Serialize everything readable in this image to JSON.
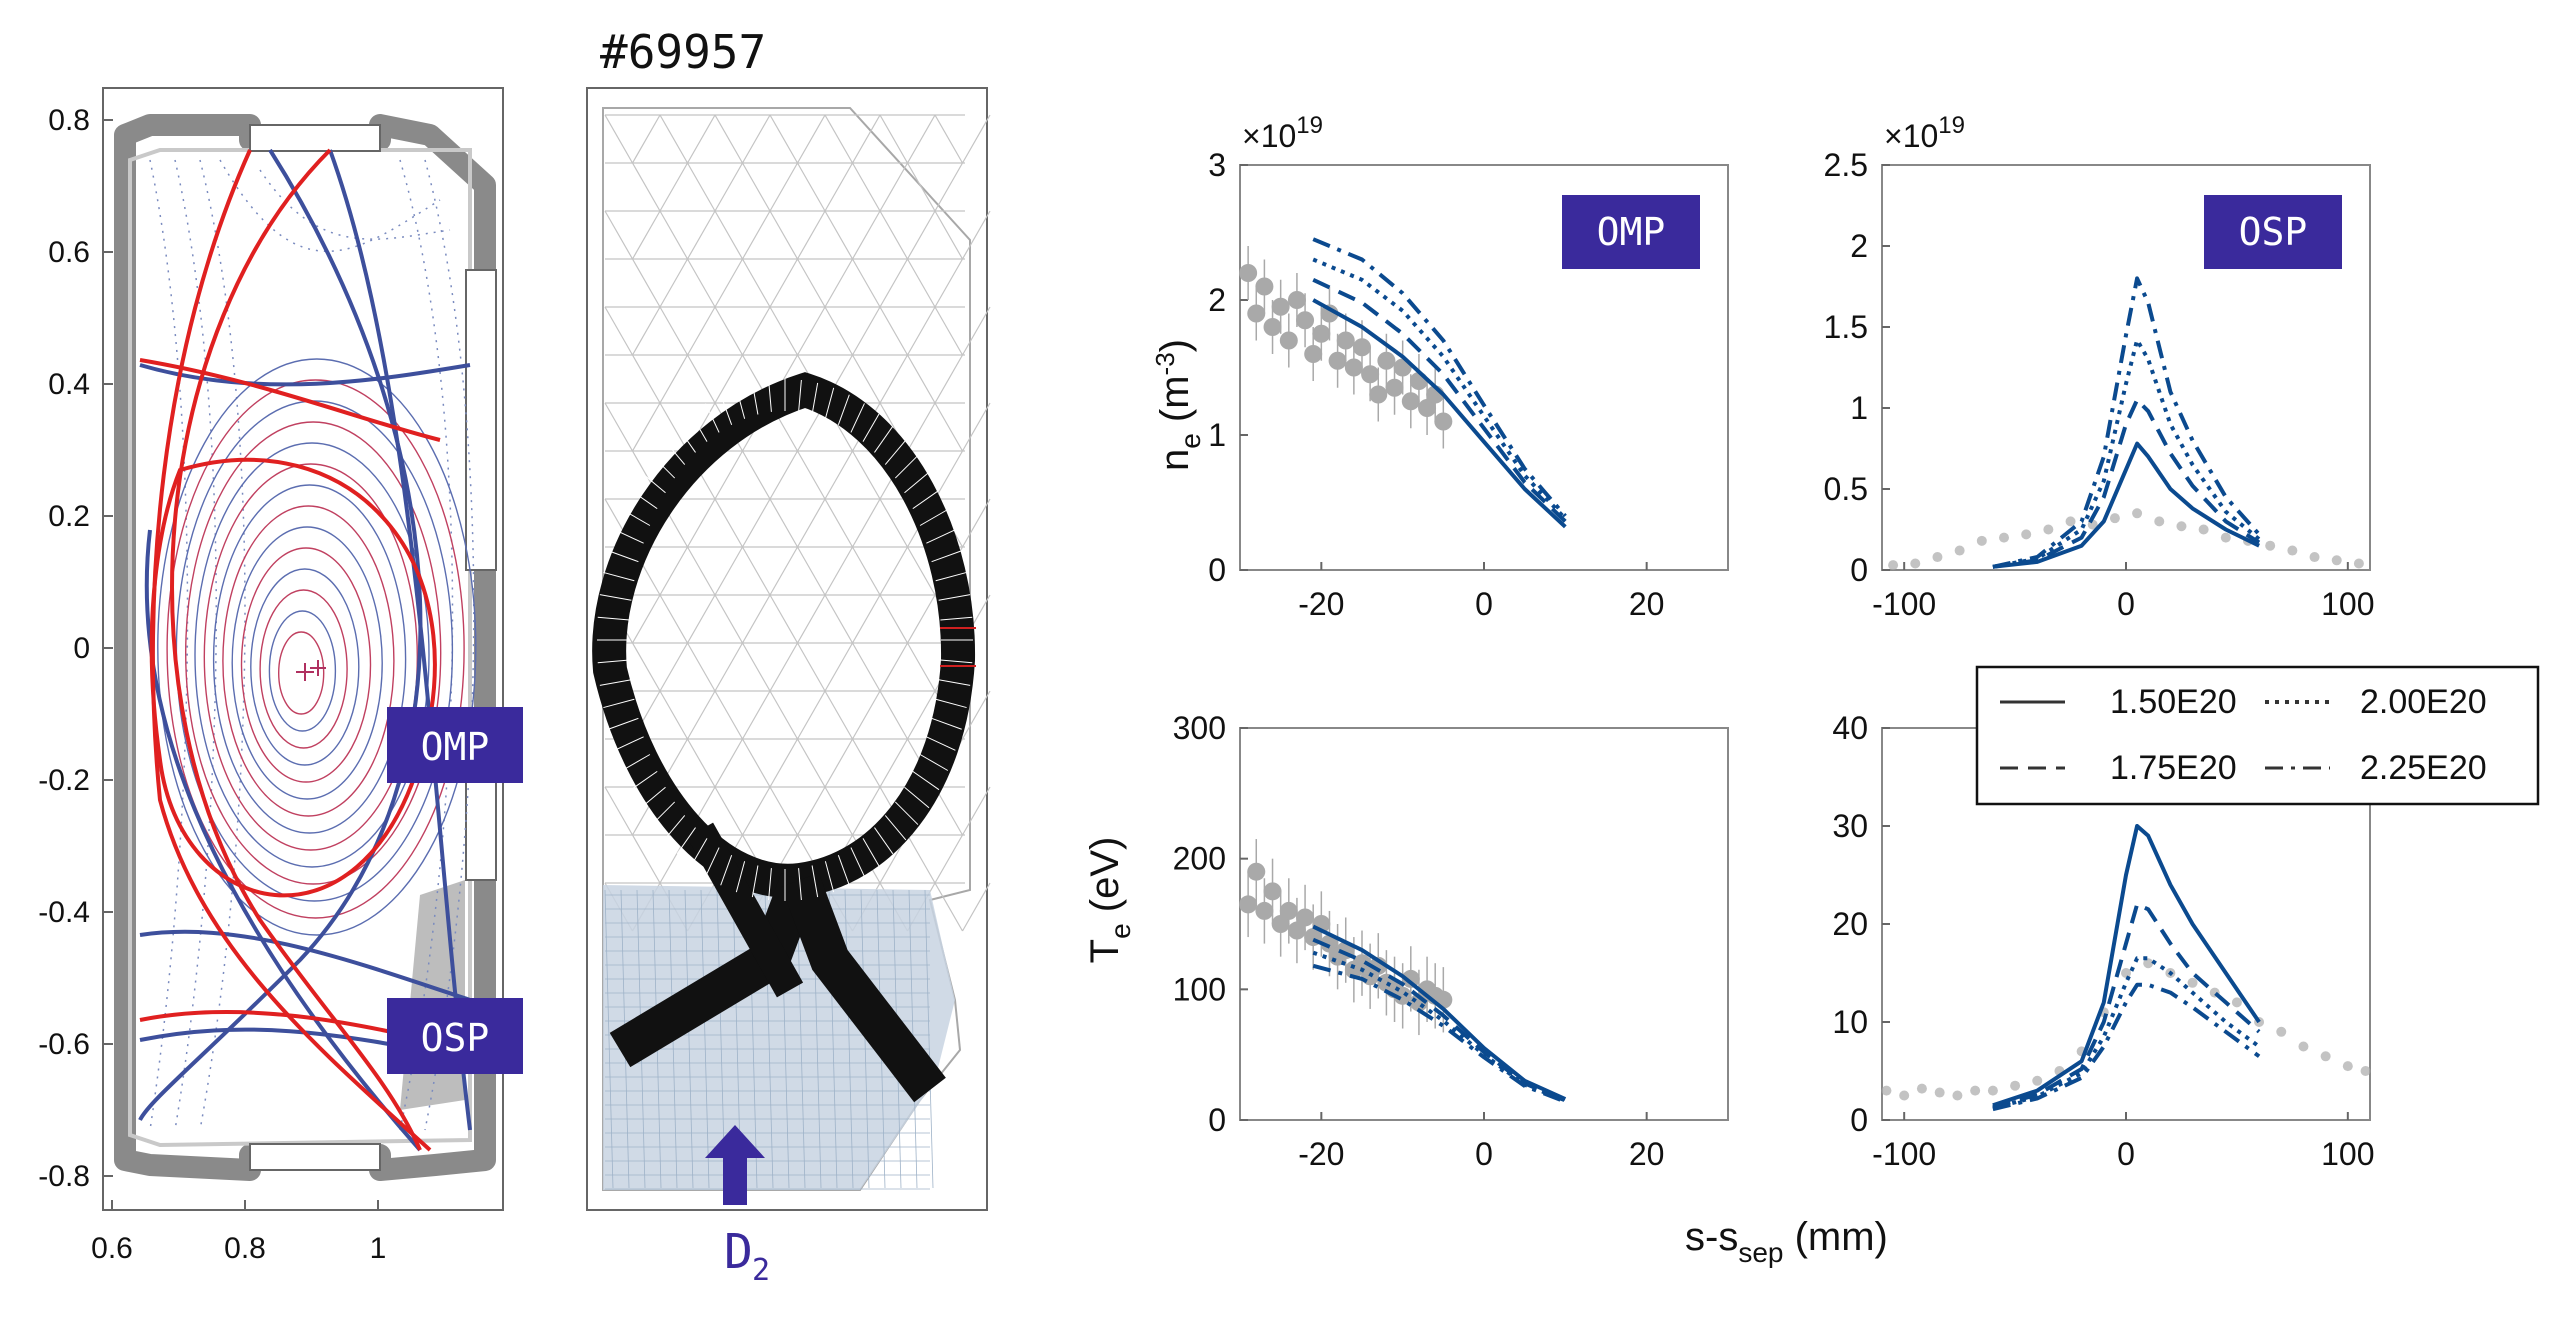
{
  "figure": {
    "shot_label": "#69957",
    "gas_label_main": "D",
    "gas_label_sub": "2",
    "tag_omp": "OMP",
    "tag_osp": "OSP",
    "xlabel_main": "s-s",
    "xlabel_sub": "sep",
    "xlabel_unit": " (mm)",
    "colors": {
      "model": "#0b4a8f",
      "exp": "#a9a9a9",
      "tag_bg": "#3a2a9c",
      "red": "#e02020",
      "blue": "#3d4f9c"
    },
    "icons": {
      "gas_arrow": "arrow-up-icon"
    }
  },
  "equilibrium_panel": {
    "xticks": [
      "0.6",
      "0.8",
      "1"
    ],
    "yticks": [
      "0.8",
      "0.6",
      "0.4",
      "0.2",
      "0",
      "-0.2",
      "-0.4",
      "-0.6",
      "-0.8"
    ]
  },
  "chart_data": [
    {
      "id": "ne_omp",
      "type": "line",
      "tag": "OMP",
      "ylabel_main": "n",
      "ylabel_sub": "e",
      "ylabel_unit_pre": " (m",
      "ylabel_unit_sup": "-3",
      "ylabel_unit_post": ")",
      "exponent_base": "×10",
      "exponent_power": "19",
      "xlim": [
        -30,
        30
      ],
      "ylim": [
        0,
        3
      ],
      "xticks": [
        "-20",
        "0",
        "20"
      ],
      "xtick_values": [
        -20,
        0,
        20
      ],
      "yticks": [
        "0",
        "1",
        "2",
        "3"
      ],
      "ytick_values": [
        0,
        1,
        2,
        3
      ],
      "series": [
        {
          "name": "1.50E20",
          "dash": "",
          "x": [
            -21,
            -15,
            -10,
            -5,
            0,
            5,
            10
          ],
          "y": [
            2.0,
            1.8,
            1.58,
            1.3,
            0.95,
            0.6,
            0.32
          ]
        },
        {
          "name": "1.75E20",
          "dash": "18 10",
          "x": [
            -21,
            -15,
            -10,
            -5,
            0,
            5,
            10
          ],
          "y": [
            2.15,
            1.98,
            1.75,
            1.45,
            1.05,
            0.65,
            0.36
          ]
        },
        {
          "name": "2.00E20",
          "dash": "4 6",
          "x": [
            -21,
            -15,
            -10,
            -5,
            0,
            5,
            10
          ],
          "y": [
            2.3,
            2.15,
            1.92,
            1.58,
            1.14,
            0.7,
            0.38
          ]
        },
        {
          "name": "2.25E20",
          "dash": "18 8 4 8",
          "x": [
            -21,
            -15,
            -10,
            -5,
            0,
            5,
            10
          ],
          "y": [
            2.45,
            2.3,
            2.05,
            1.7,
            1.22,
            0.75,
            0.4
          ]
        }
      ],
      "experiment": {
        "x": [
          -29,
          -28,
          -27,
          -26,
          -25,
          -24,
          -23,
          -22,
          -21,
          -20,
          -19,
          -18,
          -17,
          -16,
          -15,
          -14,
          -13,
          -12,
          -11,
          -10,
          -9,
          -8,
          -7,
          -6,
          -5
        ],
        "y": [
          2.2,
          1.9,
          2.1,
          1.8,
          1.95,
          1.7,
          2.0,
          1.85,
          1.6,
          1.75,
          1.9,
          1.55,
          1.7,
          1.5,
          1.65,
          1.45,
          1.3,
          1.55,
          1.35,
          1.5,
          1.25,
          1.4,
          1.2,
          1.3,
          1.1
        ],
        "err": 0.2
      }
    },
    {
      "id": "ne_osp",
      "type": "line",
      "tag": "OSP",
      "exponent_base": "×10",
      "exponent_power": "19",
      "xlim": [
        -110,
        110
      ],
      "ylim": [
        0,
        2.5
      ],
      "xticks": [
        "-100",
        "0",
        "100"
      ],
      "xtick_values": [
        -100,
        0,
        100
      ],
      "yticks": [
        "0",
        "0.5",
        "1",
        "1.5",
        "2",
        "2.5"
      ],
      "ytick_values": [
        0,
        0.5,
        1,
        1.5,
        2,
        2.5
      ],
      "series": [
        {
          "name": "1.50E20",
          "dash": "",
          "x": [
            -60,
            -40,
            -20,
            -10,
            0,
            5,
            10,
            20,
            30,
            45,
            60
          ],
          "y": [
            0.02,
            0.05,
            0.15,
            0.3,
            0.62,
            0.78,
            0.7,
            0.5,
            0.38,
            0.25,
            0.15
          ]
        },
        {
          "name": "1.75E20",
          "dash": "18 10",
          "x": [
            -60,
            -40,
            -20,
            -10,
            0,
            5,
            10,
            20,
            30,
            45,
            60
          ],
          "y": [
            0.02,
            0.06,
            0.2,
            0.45,
            0.9,
            1.05,
            0.98,
            0.72,
            0.52,
            0.3,
            0.17
          ]
        },
        {
          "name": "2.00E20",
          "dash": "4 6",
          "x": [
            -60,
            -40,
            -20,
            -10,
            0,
            5,
            10,
            20,
            30,
            45,
            60
          ],
          "y": [
            0.02,
            0.07,
            0.25,
            0.55,
            1.15,
            1.42,
            1.3,
            0.9,
            0.65,
            0.36,
            0.19
          ]
        },
        {
          "name": "2.25E20",
          "dash": "18 8 4 8",
          "x": [
            -60,
            -40,
            -20,
            -10,
            0,
            5,
            10,
            20,
            30,
            45,
            60
          ],
          "y": [
            0.02,
            0.08,
            0.3,
            0.7,
            1.45,
            1.8,
            1.65,
            1.1,
            0.8,
            0.45,
            0.22
          ]
        }
      ],
      "experiment": {
        "x": [
          -105,
          -95,
          -85,
          -75,
          -65,
          -55,
          -45,
          -35,
          -25,
          -15,
          -5,
          5,
          15,
          25,
          35,
          45,
          55,
          65,
          75,
          85,
          95,
          105
        ],
        "y": [
          0.03,
          0.04,
          0.08,
          0.12,
          0.18,
          0.2,
          0.22,
          0.25,
          0.3,
          0.28,
          0.32,
          0.35,
          0.3,
          0.27,
          0.25,
          0.2,
          0.18,
          0.15,
          0.12,
          0.08,
          0.06,
          0.04
        ],
        "err": 0
      }
    },
    {
      "id": "te_omp",
      "type": "line",
      "ylabel_main": "T",
      "ylabel_sub": "e",
      "ylabel_unit_pre": " (eV)",
      "ylabel_unit_sup": "",
      "ylabel_unit_post": "",
      "xlim": [
        -30,
        30
      ],
      "ylim": [
        0,
        300
      ],
      "xticks": [
        "-20",
        "0",
        "20"
      ],
      "xtick_values": [
        -20,
        0,
        20
      ],
      "yticks": [
        "0",
        "100",
        "200",
        "300"
      ],
      "ytick_values": [
        0,
        100,
        200,
        300
      ],
      "series": [
        {
          "name": "1.50E20",
          "dash": "",
          "x": [
            -21,
            -15,
            -10,
            -5,
            0,
            5,
            10
          ],
          "y": [
            148,
            130,
            110,
            85,
            55,
            30,
            16
          ]
        },
        {
          "name": "1.75E20",
          "dash": "18 10",
          "x": [
            -21,
            -15,
            -10,
            -5,
            0,
            5,
            10
          ],
          "y": [
            138,
            122,
            104,
            80,
            52,
            28,
            15
          ]
        },
        {
          "name": "2.00E20",
          "dash": "4 6",
          "x": [
            -21,
            -15,
            -10,
            -5,
            0,
            5,
            10
          ],
          "y": [
            128,
            115,
            98,
            76,
            50,
            27,
            15
          ]
        },
        {
          "name": "2.25E20",
          "dash": "18 8 4 8",
          "x": [
            -21,
            -15,
            -10,
            -5,
            0,
            5,
            10
          ],
          "y": [
            118,
            108,
            92,
            72,
            48,
            26,
            14
          ]
        }
      ],
      "experiment": {
        "x": [
          -29,
          -28,
          -27,
          -26,
          -25,
          -24,
          -23,
          -22,
          -21,
          -20,
          -19,
          -18,
          -17,
          -16,
          -15,
          -14,
          -13,
          -12,
          -11,
          -10,
          -9,
          -8,
          -7,
          -6,
          -5
        ],
        "y": [
          165,
          190,
          160,
          175,
          150,
          160,
          145,
          155,
          140,
          150,
          135,
          125,
          130,
          115,
          120,
          110,
          118,
          105,
          100,
          95,
          108,
          90,
          100,
          95,
          92
        ],
        "err": 25
      }
    },
    {
      "id": "te_osp",
      "type": "line",
      "xlim": [
        -110,
        110
      ],
      "ylim": [
        0,
        40
      ],
      "xticks": [
        "-100",
        "0",
        "100"
      ],
      "xtick_values": [
        -100,
        0,
        100
      ],
      "yticks": [
        "0",
        "10",
        "20",
        "30",
        "40"
      ],
      "ytick_values": [
        0,
        10,
        20,
        30,
        40
      ],
      "series": [
        {
          "name": "1.50E20",
          "dash": "",
          "x": [
            -60,
            -40,
            -20,
            -10,
            0,
            5,
            10,
            20,
            30,
            45,
            60
          ],
          "y": [
            1.5,
            3,
            6,
            12,
            25,
            30,
            29,
            24,
            20,
            15,
            10
          ]
        },
        {
          "name": "1.75E20",
          "dash": "18 10",
          "x": [
            -60,
            -40,
            -20,
            -10,
            0,
            5,
            10,
            20,
            30,
            45,
            60
          ],
          "y": [
            1.3,
            2.6,
            5.2,
            10,
            18,
            22,
            21.5,
            18,
            15,
            12,
            9
          ]
        },
        {
          "name": "2.00E20",
          "dash": "4 6",
          "x": [
            -60,
            -40,
            -20,
            -10,
            0,
            5,
            10,
            20,
            30,
            45,
            60
          ],
          "y": [
            1.2,
            2.4,
            4.8,
            8.5,
            14,
            16.5,
            16.5,
            15,
            13,
            10,
            7.5
          ]
        },
        {
          "name": "2.25E20",
          "dash": "18 8 4 8",
          "x": [
            -60,
            -40,
            -20,
            -10,
            0,
            5,
            10,
            20,
            30,
            45,
            60
          ],
          "y": [
            1.1,
            2.2,
            4.3,
            7.5,
            12,
            13.8,
            13.8,
            13,
            11.5,
            9,
            6.5
          ]
        }
      ],
      "experiment": {
        "x": [
          -108,
          -100,
          -92,
          -84,
          -76,
          -68,
          -60,
          -50,
          -40,
          -30,
          -20,
          -10,
          0,
          10,
          20,
          30,
          40,
          50,
          60,
          70,
          80,
          90,
          100,
          108
        ],
        "y": [
          3,
          2.5,
          3.2,
          2.8,
          2.5,
          3,
          3,
          3.5,
          4,
          5,
          7,
          11,
          15,
          16,
          15,
          14,
          13,
          12,
          10,
          9,
          7.5,
          6.5,
          5.5,
          5
        ],
        "err": 0
      }
    }
  ],
  "legend": {
    "entries": [
      "1.50E20",
      "2.00E20",
      "1.75E20",
      "2.25E20"
    ]
  }
}
